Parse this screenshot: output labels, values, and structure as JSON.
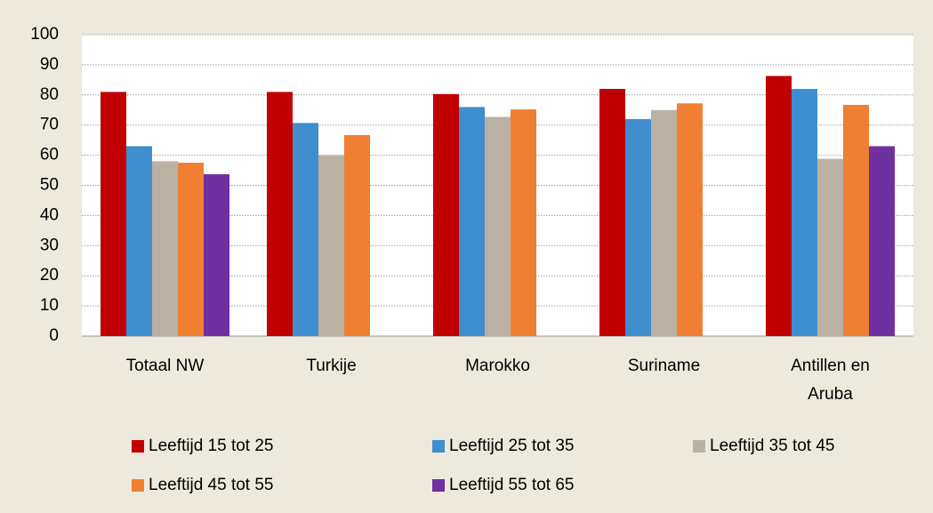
{
  "chart_data": {
    "type": "bar",
    "categories": [
      "Totaal NW",
      "Turkije",
      "Marokko",
      "Suriname",
      "Antillen en Aruba"
    ],
    "series": [
      {
        "name": "Leeftijd 15 tot 25",
        "color": "#c00000",
        "values": [
          81,
          81,
          80.3,
          82,
          86.3
        ]
      },
      {
        "name": "Leeftijd 25 tot 35",
        "color": "#3e8ed0",
        "values": [
          63,
          70.7,
          76,
          72,
          82
        ]
      },
      {
        "name": "Leeftijd 35 tot 45",
        "color": "#bab1a4",
        "values": [
          58,
          60,
          72.7,
          75,
          58.8
        ]
      },
      {
        "name": "Leeftijd 45 tot 55",
        "color": "#ef7f33",
        "values": [
          57.5,
          66.7,
          75.2,
          77.2,
          76.7
        ]
      },
      {
        "name": "Leeftijd 55 tot 65",
        "color": "#7030a0",
        "values": [
          53.7,
          null,
          null,
          null,
          63
        ]
      }
    ],
    "ylim": [
      0,
      100
    ],
    "yticks": [
      0,
      10,
      20,
      30,
      40,
      50,
      60,
      70,
      80,
      90,
      100
    ],
    "grid": true
  }
}
